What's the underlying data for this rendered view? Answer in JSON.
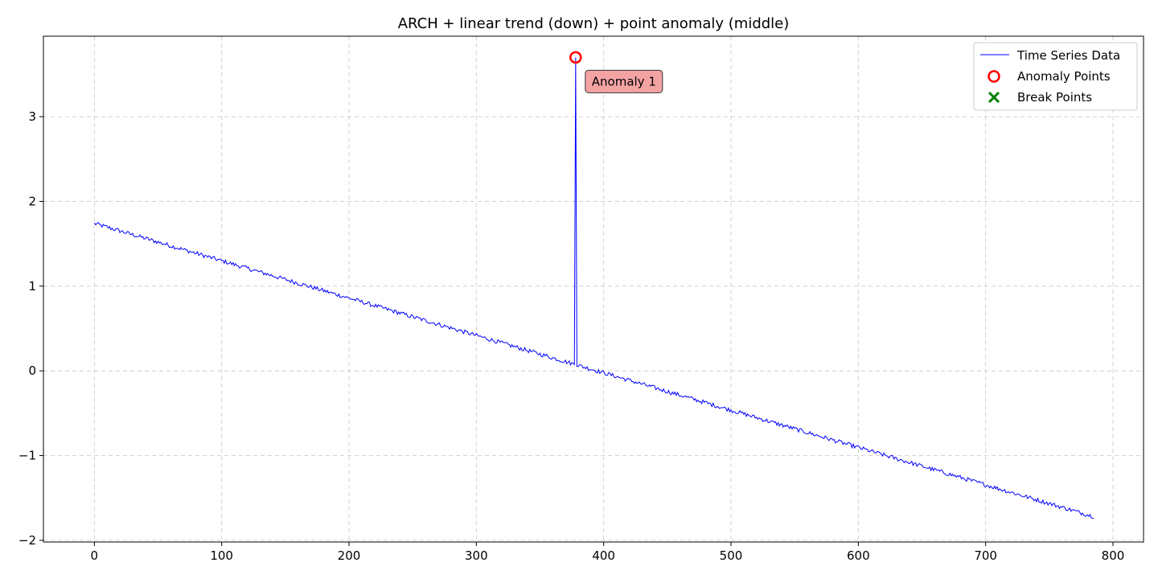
{
  "chart_data": {
    "type": "line",
    "title": "ARCH + linear trend (down) + point anomaly (middle)",
    "xlabel": "",
    "ylabel": "",
    "xlim": [
      -40,
      824
    ],
    "ylim": [
      -2.02,
      3.95
    ],
    "xticks": [
      0,
      100,
      200,
      300,
      400,
      500,
      600,
      700,
      800
    ],
    "xtick_labels": [
      "0",
      "100",
      "200",
      "300",
      "400",
      "500",
      "600",
      "700",
      "800"
    ],
    "yticks": [
      -2,
      -1,
      0,
      1,
      2,
      3
    ],
    "ytick_labels": [
      "−2",
      "−1",
      "0",
      "1",
      "2",
      "3"
    ],
    "grid": true,
    "legend_position": "top-right",
    "series": [
      {
        "name": "Time Series Data",
        "color": "#0000ff",
        "kind": "line",
        "n_points": 786,
        "x_start": 0,
        "x_end": 785,
        "trend_start": 1.74,
        "trend_end": -1.72,
        "noise_amplitude": 0.025,
        "spike": {
          "x": 378,
          "y": 3.7
        }
      }
    ],
    "anomaly_points": {
      "name": "Anomaly Points",
      "color": "#ff0000",
      "marker": "circle-hollow",
      "points": [
        {
          "x": 378,
          "y": 3.7
        }
      ]
    },
    "break_points": {
      "name": "Break Points",
      "color": "#008000",
      "marker": "x",
      "points": []
    },
    "annotations": [
      {
        "text": "Anomaly 1",
        "x": 378,
        "y": 3.7,
        "bg": "#f4a3a3"
      }
    ]
  }
}
